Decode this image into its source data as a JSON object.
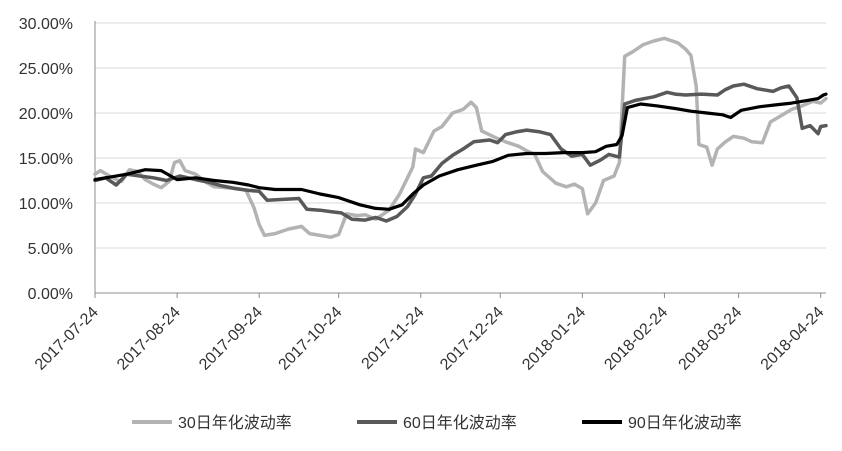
{
  "chart_data": {
    "type": "line",
    "title": "",
    "xlabel": "",
    "ylabel": "",
    "ylim": [
      0,
      30
    ],
    "y_ticks": [
      "0.00%",
      "5.00%",
      "10.00%",
      "15.00%",
      "20.00%",
      "25.00%",
      "30.00%"
    ],
    "x_ticks": [
      "2017-07-24",
      "2017-08-24",
      "2017-09-24",
      "2017-10-24",
      "2017-11-24",
      "2017-12-24",
      "2018-01-24",
      "2018-02-24",
      "2018-03-24",
      "2018-04-24"
    ],
    "x_range": [
      "2017-07-24",
      "2018-04-26"
    ],
    "grid": "horizontal",
    "legend_position": "bottom",
    "series": [
      {
        "name": "30日年化波动率",
        "color": "#b3b3b3",
        "points": [
          [
            "2017-07-24",
            13.2
          ],
          [
            "2017-07-26",
            13.6
          ],
          [
            "2017-07-29",
            13.1
          ],
          [
            "2017-08-01",
            12.6
          ],
          [
            "2017-08-03",
            12.4
          ],
          [
            "2017-08-06",
            13.7
          ],
          [
            "2017-08-09",
            13.5
          ],
          [
            "2017-08-12",
            12.6
          ],
          [
            "2017-08-15",
            12.1
          ],
          [
            "2017-08-18",
            11.7
          ],
          [
            "2017-08-21",
            12.4
          ],
          [
            "2017-08-23",
            14.5
          ],
          [
            "2017-08-25",
            14.7
          ],
          [
            "2017-08-27",
            13.6
          ],
          [
            "2017-08-31",
            13.2
          ],
          [
            "2017-09-04",
            12.3
          ],
          [
            "2017-09-07",
            11.8
          ],
          [
            "2017-09-12",
            11.7
          ],
          [
            "2017-09-16",
            11.6
          ],
          [
            "2017-09-19",
            11.4
          ],
          [
            "2017-09-22",
            9.5
          ],
          [
            "2017-09-24",
            7.6
          ],
          [
            "2017-09-26",
            6.4
          ],
          [
            "2017-09-30",
            6.6
          ],
          [
            "2017-10-05",
            7.1
          ],
          [
            "2017-10-10",
            7.4
          ],
          [
            "2017-10-13",
            6.6
          ],
          [
            "2017-10-17",
            6.4
          ],
          [
            "2017-10-21",
            6.2
          ],
          [
            "2017-10-24",
            6.5
          ],
          [
            "2017-10-27",
            8.8
          ],
          [
            "2017-10-31",
            8.6
          ],
          [
            "2017-11-03",
            8.7
          ],
          [
            "2017-11-07",
            8.2
          ],
          [
            "2017-11-12",
            9.2
          ],
          [
            "2017-11-16",
            11.0
          ],
          [
            "2017-11-19",
            12.8
          ],
          [
            "2017-11-21",
            14.0
          ],
          [
            "2017-11-22",
            16.0
          ],
          [
            "2017-11-25",
            15.6
          ],
          [
            "2017-11-29",
            18.0
          ],
          [
            "2017-12-02",
            18.5
          ],
          [
            "2017-12-06",
            20.0
          ],
          [
            "2017-12-10",
            20.4
          ],
          [
            "2017-12-13",
            21.2
          ],
          [
            "2017-12-15",
            20.6
          ],
          [
            "2017-12-17",
            18.0
          ],
          [
            "2017-12-22",
            17.3
          ],
          [
            "2017-12-26",
            16.8
          ],
          [
            "2017-12-31",
            16.3
          ],
          [
            "2018-01-03",
            15.8
          ],
          [
            "2018-01-06",
            15.4
          ],
          [
            "2018-01-09",
            13.5
          ],
          [
            "2018-01-14",
            12.2
          ],
          [
            "2018-01-18",
            11.8
          ],
          [
            "2018-01-21",
            12.1
          ],
          [
            "2018-01-24",
            11.6
          ],
          [
            "2018-01-26",
            8.8
          ],
          [
            "2018-01-29",
            10.0
          ],
          [
            "2018-02-01",
            12.5
          ],
          [
            "2018-02-05",
            13.0
          ],
          [
            "2018-02-07",
            14.5
          ],
          [
            "2018-02-09",
            26.3
          ],
          [
            "2018-02-12",
            26.8
          ],
          [
            "2018-02-16",
            27.6
          ],
          [
            "2018-02-20",
            28.0
          ],
          [
            "2018-02-24",
            28.3
          ],
          [
            "2018-02-26",
            28.1
          ],
          [
            "2018-03-01",
            27.8
          ],
          [
            "2018-03-04",
            27.1
          ],
          [
            "2018-03-06",
            26.4
          ],
          [
            "2018-03-08",
            23.0
          ],
          [
            "2018-03-09",
            16.5
          ],
          [
            "2018-03-12",
            16.2
          ],
          [
            "2018-03-14",
            14.2
          ],
          [
            "2018-03-16",
            16.0
          ],
          [
            "2018-03-19",
            16.8
          ],
          [
            "2018-03-22",
            17.4
          ],
          [
            "2018-03-26",
            17.2
          ],
          [
            "2018-03-29",
            16.8
          ],
          [
            "2018-04-02",
            16.7
          ],
          [
            "2018-04-05",
            19.0
          ],
          [
            "2018-04-09",
            19.7
          ],
          [
            "2018-04-13",
            20.4
          ],
          [
            "2018-04-17",
            20.8
          ],
          [
            "2018-04-21",
            21.3
          ],
          [
            "2018-04-24",
            21.1
          ],
          [
            "2018-04-26",
            21.6
          ]
        ]
      },
      {
        "name": "60日年化波动率",
        "color": "#595959",
        "points": [
          [
            "2017-07-24",
            12.5
          ],
          [
            "2017-07-28",
            12.8
          ],
          [
            "2017-08-01",
            12.0
          ],
          [
            "2017-08-05",
            13.2
          ],
          [
            "2017-08-10",
            13.0
          ],
          [
            "2017-08-15",
            12.8
          ],
          [
            "2017-08-20",
            12.5
          ],
          [
            "2017-08-25",
            13.0
          ],
          [
            "2017-08-31",
            12.6
          ],
          [
            "2017-09-05",
            12.3
          ],
          [
            "2017-09-10",
            11.9
          ],
          [
            "2017-09-15",
            11.6
          ],
          [
            "2017-09-20",
            11.4
          ],
          [
            "2017-09-24",
            11.3
          ],
          [
            "2017-09-27",
            10.3
          ],
          [
            "2017-10-03",
            10.4
          ],
          [
            "2017-10-09",
            10.5
          ],
          [
            "2017-10-12",
            9.3
          ],
          [
            "2017-10-17",
            9.2
          ],
          [
            "2017-10-22",
            9.0
          ],
          [
            "2017-10-25",
            8.9
          ],
          [
            "2017-10-29",
            8.2
          ],
          [
            "2017-11-03",
            8.1
          ],
          [
            "2017-11-07",
            8.4
          ],
          [
            "2017-11-11",
            8.0
          ],
          [
            "2017-11-15",
            8.5
          ],
          [
            "2017-11-19",
            9.6
          ],
          [
            "2017-11-22",
            11.0
          ],
          [
            "2017-11-25",
            12.8
          ],
          [
            "2017-11-28",
            13.0
          ],
          [
            "2017-12-02",
            14.4
          ],
          [
            "2017-12-06",
            15.3
          ],
          [
            "2017-12-10",
            16.0
          ],
          [
            "2017-12-14",
            16.8
          ],
          [
            "2017-12-20",
            17.0
          ],
          [
            "2017-12-23",
            16.7
          ],
          [
            "2017-12-26",
            17.6
          ],
          [
            "2017-12-30",
            17.9
          ],
          [
            "2018-01-03",
            18.1
          ],
          [
            "2018-01-08",
            17.9
          ],
          [
            "2018-01-12",
            17.6
          ],
          [
            "2018-01-16",
            16.0
          ],
          [
            "2018-01-20",
            15.2
          ],
          [
            "2018-01-24",
            15.4
          ],
          [
            "2018-01-27",
            14.2
          ],
          [
            "2018-01-31",
            14.8
          ],
          [
            "2018-02-03",
            15.4
          ],
          [
            "2018-02-07",
            15.1
          ],
          [
            "2018-02-09",
            21.0
          ],
          [
            "2018-02-13",
            21.4
          ],
          [
            "2018-02-20",
            21.8
          ],
          [
            "2018-02-25",
            22.3
          ],
          [
            "2018-02-28",
            22.1
          ],
          [
            "2018-03-04",
            22.0
          ],
          [
            "2018-03-10",
            22.1
          ],
          [
            "2018-03-16",
            22.0
          ],
          [
            "2018-03-19",
            22.6
          ],
          [
            "2018-03-22",
            23.0
          ],
          [
            "2018-03-26",
            23.2
          ],
          [
            "2018-03-31",
            22.7
          ],
          [
            "2018-04-06",
            22.4
          ],
          [
            "2018-04-09",
            22.8
          ],
          [
            "2018-04-12",
            23.0
          ],
          [
            "2018-04-15",
            21.7
          ],
          [
            "2018-04-17",
            18.3
          ],
          [
            "2018-04-20",
            18.6
          ],
          [
            "2018-04-23",
            17.7
          ],
          [
            "2018-04-24",
            18.5
          ],
          [
            "2018-04-26",
            18.6
          ]
        ]
      },
      {
        "name": "90日年化波动率",
        "color": "#000000",
        "points": [
          [
            "2017-07-24",
            12.6
          ],
          [
            "2017-07-30",
            12.9
          ],
          [
            "2017-08-05",
            13.2
          ],
          [
            "2017-08-12",
            13.7
          ],
          [
            "2017-08-18",
            13.6
          ],
          [
            "2017-08-24",
            12.6
          ],
          [
            "2017-08-31",
            12.8
          ],
          [
            "2017-09-07",
            12.5
          ],
          [
            "2017-09-14",
            12.3
          ],
          [
            "2017-09-20",
            12.0
          ],
          [
            "2017-09-24",
            11.7
          ],
          [
            "2017-09-30",
            11.5
          ],
          [
            "2017-10-10",
            11.5
          ],
          [
            "2017-10-17",
            11.0
          ],
          [
            "2017-10-24",
            10.6
          ],
          [
            "2017-11-01",
            9.8
          ],
          [
            "2017-11-07",
            9.4
          ],
          [
            "2017-11-12",
            9.3
          ],
          [
            "2017-11-17",
            9.8
          ],
          [
            "2017-11-21",
            11.0
          ],
          [
            "2017-11-25",
            12.0
          ],
          [
            "2017-12-01",
            13.0
          ],
          [
            "2017-12-08",
            13.7
          ],
          [
            "2017-12-15",
            14.2
          ],
          [
            "2017-12-21",
            14.6
          ],
          [
            "2017-12-27",
            15.3
          ],
          [
            "2018-01-03",
            15.5
          ],
          [
            "2018-01-10",
            15.5
          ],
          [
            "2018-01-17",
            15.6
          ],
          [
            "2018-01-24",
            15.6
          ],
          [
            "2018-01-29",
            15.7
          ],
          [
            "2018-02-02",
            16.3
          ],
          [
            "2018-02-06",
            16.5
          ],
          [
            "2018-02-08",
            17.5
          ],
          [
            "2018-02-10",
            20.6
          ],
          [
            "2018-02-15",
            21.0
          ],
          [
            "2018-02-21",
            20.8
          ],
          [
            "2018-02-28",
            20.5
          ],
          [
            "2018-03-06",
            20.2
          ],
          [
            "2018-03-12",
            20.0
          ],
          [
            "2018-03-18",
            19.8
          ],
          [
            "2018-03-21",
            19.5
          ],
          [
            "2018-03-25",
            20.3
          ],
          [
            "2018-04-01",
            20.7
          ],
          [
            "2018-04-07",
            20.9
          ],
          [
            "2018-04-13",
            21.1
          ],
          [
            "2018-04-19",
            21.4
          ],
          [
            "2018-04-23",
            21.6
          ],
          [
            "2018-04-25",
            22.0
          ],
          [
            "2018-04-26",
            22.1
          ]
        ]
      }
    ]
  }
}
